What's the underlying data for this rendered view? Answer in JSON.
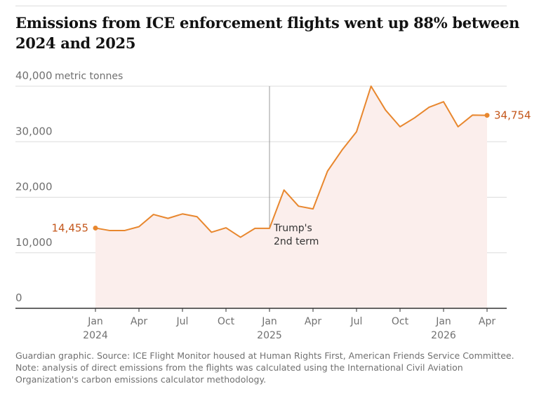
{
  "chart_data": {
    "type": "line",
    "title": "Emissions from ICE enforcement flights went up 88% between 2024 and 2025",
    "ylabel": "metric tonnes",
    "categories": [
      "Jan 2024",
      null,
      null,
      "Apr",
      null,
      null,
      "Jul",
      null,
      null,
      "Oct",
      null,
      null,
      "Jan 2025",
      null,
      null,
      "Apr",
      null,
      null,
      "Jul",
      null,
      null,
      "Oct",
      null,
      null,
      "Jan 2026",
      null,
      null,
      "Apr"
    ],
    "series": [
      {
        "name": "Emissions",
        "color": "#e8872e",
        "values": [
          14455,
          14000,
          14000,
          14700,
          16900,
          16200,
          17000,
          16500,
          13700,
          14500,
          12800,
          14400,
          14400,
          21300,
          18400,
          17900,
          24700,
          28500,
          31800,
          40000,
          35700,
          32700,
          34300,
          36200,
          37200,
          32700,
          34800,
          34754
        ],
        "value_labels": [
          "14,455",
          null,
          null,
          null,
          null,
          null,
          null,
          null,
          null,
          null,
          null,
          null,
          null,
          null,
          null,
          null,
          null,
          null,
          null,
          null,
          null,
          null,
          null,
          null,
          null,
          null,
          null,
          "34,754"
        ]
      }
    ],
    "area_color": "#fbeeec",
    "label_color": "#c4571b",
    "ylim": [
      0,
      40000
    ],
    "yticks": [
      0,
      {
        "value": 10000,
        "label": "10,000"
      },
      {
        "value": 20000,
        "label": "20,000"
      },
      {
        "value": 30000,
        "label": "30,000"
      },
      {
        "value": 40000,
        "label": "40,000"
      }
    ],
    "grid": true,
    "annotations": [
      {
        "category": "Jan 2025",
        "text": "Trump's 2nd term"
      }
    ],
    "footer": "Guardian graphic. Source: ICE Flight Monitor housed at Human Rights First, American Friends Service Committee. Note: analysis of direct emissions from the flights was calculated using the International Civil Aviation Organization's carbon emissions calculator methodology."
  }
}
